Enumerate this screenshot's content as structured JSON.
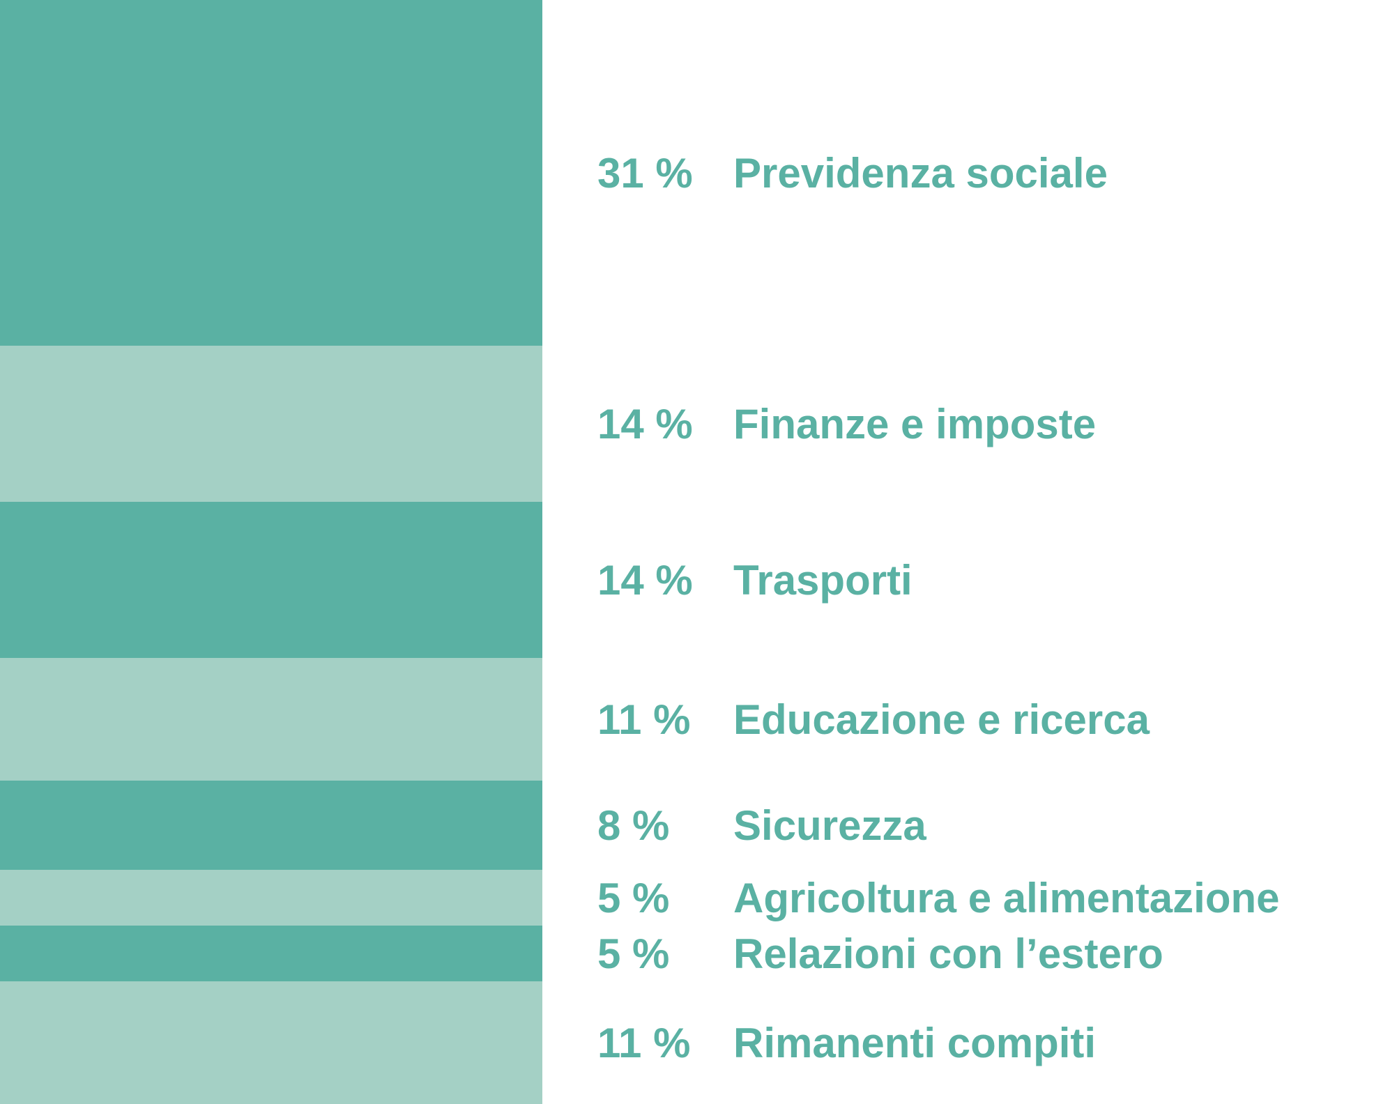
{
  "chart_data": {
    "type": "bar",
    "orientation": "stacked-vertical",
    "title": "",
    "xlabel": "",
    "ylabel": "",
    "unit": "%",
    "categories": [
      "Previdenza sociale",
      "Finanze e imposte",
      "Trasporti",
      "Educazione e ricerca",
      "Sicurezza",
      "Agricoltura e alimentazione",
      "Relazioni con l’estero",
      "Rimanenti compiti"
    ],
    "values": [
      31,
      14,
      14,
      11,
      8,
      5,
      5,
      11
    ],
    "value_labels": [
      "31 %",
      "14 %",
      "14 %",
      "11 %",
      "8 %",
      "5 %",
      "5 %",
      "11 %"
    ],
    "colors": {
      "dark": "#5ab1a3",
      "light": "#a4d0c5",
      "text": "#5ab1a3"
    },
    "segment_color_pattern": [
      "dark",
      "light",
      "dark",
      "light",
      "dark",
      "light",
      "dark",
      "light"
    ],
    "legend": "right",
    "grid": false
  }
}
